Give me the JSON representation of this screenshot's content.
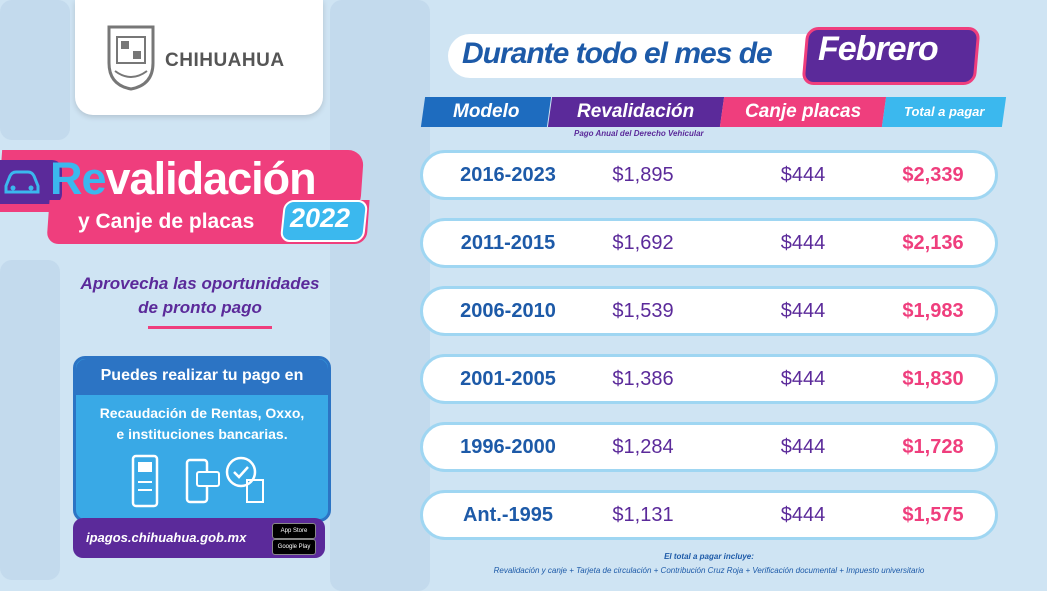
{
  "brand": {
    "name": "CHIHUAHUA"
  },
  "headline": {
    "re": "Re",
    "validacion": "validación",
    "subtitle": "y Canje de placas",
    "year": "2022"
  },
  "promo": {
    "line1": "Aprovecha las oportunidades",
    "line2": "de pronto pago"
  },
  "payment": {
    "heading": "Puedes realizar tu pago en",
    "places_line1": "Recaudación de Rentas, Oxxo,",
    "places_line2": "e instituciones bancarias.",
    "url": "ipagos.chihuahua.gob.mx",
    "store_apple": "App Store",
    "store_google": "Google Play"
  },
  "banner": {
    "lead": "Durante todo el mes de",
    "month": "Febrero"
  },
  "table": {
    "headers": {
      "model": "Modelo",
      "reval": "Revalidación",
      "canje": "Canje placas",
      "total": "Total a pagar"
    },
    "reval_note": "Pago Anual del Derecho Vehicular",
    "rows": [
      {
        "model": "2016-2023",
        "reval": "$1,895",
        "canje": "$444",
        "total": "$2,339"
      },
      {
        "model": "2011-2015",
        "reval": "$1,692",
        "canje": "$444",
        "total": "$2,136"
      },
      {
        "model": "2006-2010",
        "reval": "$1,539",
        "canje": "$444",
        "total": "$1,983"
      },
      {
        "model": "2001-2005",
        "reval": "$1,386",
        "canje": "$444",
        "total": "$1,830"
      },
      {
        "model": "1996-2000",
        "reval": "$1,284",
        "canje": "$444",
        "total": "$1,728"
      },
      {
        "model": "Ant.-1995",
        "reval": "$1,131",
        "canje": "$444",
        "total": "$1,575"
      }
    ]
  },
  "footer": {
    "line1": "El total a pagar incluye:",
    "line2": "Revalidación y canje + Tarjeta de circulación + Contribución Cruz Roja + Verificación documental + Impuesto universitario"
  },
  "colors": {
    "pink": "#ef3e7d",
    "purple": "#5b2a9a",
    "blue": "#1e6cbf",
    "cyan": "#3bb8ee"
  }
}
